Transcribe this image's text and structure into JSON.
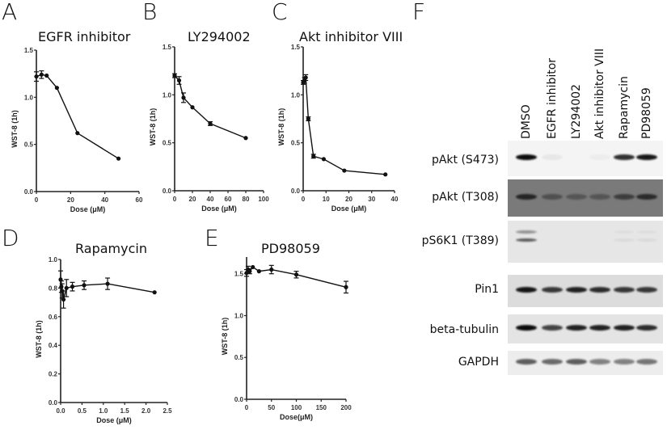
{
  "figure": {
    "panels": {
      "A": {
        "letter": "A",
        "title": "EGFR inhibitor"
      },
      "B": {
        "letter": "B",
        "title": "LY294002"
      },
      "C": {
        "letter": "C",
        "title": "Akt inhibitor VIII"
      },
      "D": {
        "letter": "D",
        "title": "Rapamycin"
      },
      "E": {
        "letter": "E",
        "title": "PD98059"
      },
      "F": {
        "letter": "F",
        "title": ""
      }
    },
    "western_blot": {
      "lanes": [
        "DMSO",
        "EGFR inhibitor",
        "LY294002",
        "Akt inhibitor VIII",
        "Rapamycin",
        "PD98059"
      ],
      "rows": [
        {
          "label": "pAkt (S473)",
          "background": "#f4f4f4",
          "band_intensity": [
            0.95,
            0.05,
            0.0,
            0.03,
            0.8,
            0.9
          ]
        },
        {
          "label": "pAkt (T308)",
          "background": "#7a7a7a",
          "band_intensity": [
            0.7,
            0.35,
            0.3,
            0.3,
            0.5,
            0.65
          ]
        },
        {
          "label": "pS6K1 (T389)",
          "background": "#e6e6e6",
          "band_intensity": [
            0.6,
            0.0,
            0.0,
            0.0,
            0.05,
            0.05
          ]
        },
        {
          "label": "Pin1",
          "background": "#dcdcdc",
          "band_intensity": [
            0.9,
            0.75,
            0.85,
            0.8,
            0.75,
            0.75
          ]
        },
        {
          "label": "beta-tubulin",
          "background": "#e4e4e4",
          "band_intensity": [
            0.95,
            0.7,
            0.85,
            0.85,
            0.85,
            0.8
          ]
        },
        {
          "label": "GAPDH",
          "background": "#ededed",
          "band_intensity": [
            0.6,
            0.55,
            0.6,
            0.45,
            0.45,
            0.5
          ]
        }
      ]
    }
  },
  "chart_data": [
    {
      "panel": "A",
      "type": "line",
      "title": "EGFR inhibitor",
      "xlabel": "Dose (μM)",
      "ylabel": "WST-8 (1h)",
      "xlim": [
        0,
        60
      ],
      "ylim": [
        0,
        1.5
      ],
      "xticks": [
        0,
        20,
        40,
        60
      ],
      "yticks": [
        0.0,
        0.5,
        1.0,
        1.5
      ],
      "grid": false,
      "legend": null,
      "x": [
        0,
        3,
        6,
        12,
        24,
        48
      ],
      "y": [
        1.22,
        1.24,
        1.23,
        1.1,
        0.62,
        0.35
      ],
      "err": [
        0.05,
        0.04,
        0.01,
        0.01,
        0.01,
        0.01
      ]
    },
    {
      "panel": "B",
      "type": "line",
      "title": "LY294002",
      "xlabel": "Dose (μM)",
      "ylabel": "WST-8 (1h)",
      "xlim": [
        0,
        100
      ],
      "ylim": [
        0,
        1.5
      ],
      "xticks": [
        0,
        20,
        40,
        60,
        80,
        100
      ],
      "yticks": [
        0.0,
        0.5,
        1.0,
        1.5
      ],
      "grid": false,
      "legend": null,
      "x": [
        0,
        5,
        10,
        20,
        40,
        80
      ],
      "y": [
        1.2,
        1.15,
        0.97,
        0.87,
        0.7,
        0.55
      ],
      "err": [
        0.02,
        0.04,
        0.05,
        0.01,
        0.02,
        0.01
      ]
    },
    {
      "panel": "C",
      "type": "line",
      "title": "Akt inhibitor VIII",
      "xlabel": "Dose (μM)",
      "ylabel": "WST-8 (1h)",
      "xlim": [
        0,
        40
      ],
      "ylim": [
        0,
        1.5
      ],
      "xticks": [
        0,
        10,
        20,
        30,
        40
      ],
      "yticks": [
        0.0,
        0.5,
        1.0,
        1.5
      ],
      "grid": false,
      "legend": null,
      "x": [
        0,
        0.56,
        1.13,
        2.25,
        4.5,
        9,
        18,
        36
      ],
      "y": [
        1.13,
        1.15,
        1.18,
        0.75,
        0.36,
        0.33,
        0.21,
        0.17
      ],
      "err": [
        0.02,
        0.03,
        0.03,
        0.02,
        0.02,
        0.01,
        0.01,
        0.01
      ]
    },
    {
      "panel": "D",
      "type": "line",
      "title": "Rapamycin",
      "xlabel": "Dose (μM)",
      "ylabel": "WST-8 (1h)",
      "xlim": [
        0,
        2.5
      ],
      "ylim": [
        0,
        1.0
      ],
      "xticks": [
        0.0,
        0.5,
        1.0,
        1.5,
        2.0,
        2.5
      ],
      "yticks": [
        0.0,
        0.2,
        0.4,
        0.6,
        0.8,
        1.0
      ],
      "grid": false,
      "legend": null,
      "x": [
        0,
        0.017,
        0.034,
        0.068,
        0.137,
        0.275,
        0.55,
        1.1,
        2.2
      ],
      "y": [
        0.86,
        0.81,
        0.78,
        0.72,
        0.8,
        0.81,
        0.82,
        0.83,
        0.77
      ],
      "err": [
        0.06,
        0.04,
        0.05,
        0.06,
        0.06,
        0.03,
        0.03,
        0.04,
        0.01
      ]
    },
    {
      "panel": "E",
      "type": "line",
      "title": "PD98059",
      "xlabel": "Dose(μM)",
      "ylabel": "WST-8 (1h)",
      "xlim": [
        0,
        200
      ],
      "ylim": [
        0,
        1.7
      ],
      "xticks": [
        0,
        50,
        100,
        150,
        200
      ],
      "yticks": [
        0.0,
        0.5,
        1.0,
        1.5
      ],
      "grid": false,
      "legend": null,
      "x": [
        0,
        3.1,
        6.25,
        12.5,
        25,
        50,
        100,
        200
      ],
      "y": [
        1.51,
        1.55,
        1.53,
        1.58,
        1.53,
        1.55,
        1.49,
        1.34
      ],
      "err": [
        0.04,
        0.04,
        0.03,
        0.01,
        0.01,
        0.05,
        0.04,
        0.07
      ]
    }
  ]
}
